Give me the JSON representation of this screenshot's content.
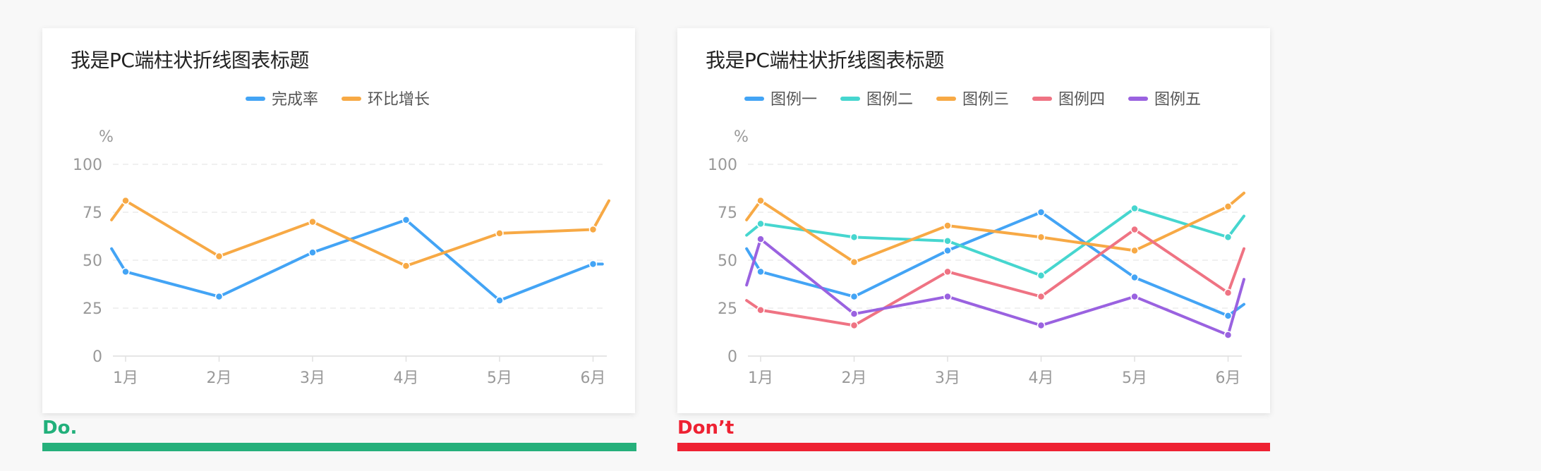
{
  "colors": {
    "do": "#22b07b",
    "dont": "#ee2233",
    "blue": "#43a4f5",
    "orange": "#f7a945",
    "teal": "#46d6cf",
    "pink": "#ef7383",
    "purple": "#9a62e0"
  },
  "labels": {
    "do": "Do.",
    "dont": "Don’t"
  },
  "chart_data": [
    {
      "type": "line",
      "title": "我是PC端柱状折线图表标题",
      "ylabel": "%",
      "xlabel": "",
      "ylim": [
        0,
        100
      ],
      "yticks": [
        0,
        25,
        50,
        75,
        100
      ],
      "grid": true,
      "legend_position": "top-center",
      "categories": [
        "1月",
        "2月",
        "3月",
        "4月",
        "5月",
        "6月"
      ],
      "x_range": [
        0.4,
        5.72
      ],
      "series": [
        {
          "name": "完成率",
          "color": "#43a4f5",
          "x": [
            0.4,
            0.55,
            1.55,
            2.55,
            3.55,
            4.55,
            5.55,
            5.65
          ],
          "values": [
            56,
            44,
            31,
            54,
            71,
            29,
            48,
            48
          ]
        },
        {
          "name": "环比增长",
          "color": "#f7a945",
          "x": [
            0.4,
            0.55,
            1.55,
            2.55,
            3.55,
            4.55,
            5.55,
            5.72
          ],
          "values": [
            71,
            81,
            52,
            70,
            47,
            64,
            66,
            81
          ]
        }
      ]
    },
    {
      "type": "line",
      "title": "我是PC端柱状折线图表标题",
      "ylabel": "%",
      "xlabel": "",
      "ylim": [
        0,
        100
      ],
      "yticks": [
        0,
        25,
        50,
        75,
        100
      ],
      "grid": true,
      "legend_position": "top-center",
      "categories": [
        "1月",
        "2月",
        "3月",
        "4月",
        "5月",
        "6月"
      ],
      "x_range": [
        0.4,
        5.72
      ],
      "series": [
        {
          "name": "图例一",
          "color": "#43a4f5",
          "x": [
            0.4,
            0.55,
            1.55,
            2.55,
            3.55,
            4.55,
            5.55,
            5.72
          ],
          "values": [
            56,
            44,
            31,
            55,
            75,
            41,
            21,
            27
          ]
        },
        {
          "name": "图例二",
          "color": "#46d6cf",
          "x": [
            0.4,
            0.55,
            1.55,
            2.55,
            3.55,
            4.55,
            5.55,
            5.72
          ],
          "values": [
            63,
            69,
            62,
            60,
            42,
            77,
            62,
            73
          ]
        },
        {
          "name": "图例三",
          "color": "#f7a945",
          "x": [
            0.4,
            0.55,
            1.55,
            2.55,
            3.55,
            4.55,
            5.55,
            5.72
          ],
          "values": [
            71,
            81,
            49,
            68,
            62,
            55,
            78,
            85
          ]
        },
        {
          "name": "图例四",
          "color": "#ef7383",
          "x": [
            0.4,
            0.55,
            1.55,
            2.55,
            3.55,
            4.55,
            5.55,
            5.72
          ],
          "values": [
            29,
            24,
            16,
            44,
            31,
            66,
            33,
            56
          ]
        },
        {
          "name": "图例五",
          "color": "#9a62e0",
          "x": [
            0.4,
            0.55,
            1.55,
            2.55,
            3.55,
            4.55,
            5.55,
            5.72
          ],
          "values": [
            37,
            61,
            22,
            31,
            16,
            31,
            11,
            40
          ]
        }
      ]
    }
  ]
}
